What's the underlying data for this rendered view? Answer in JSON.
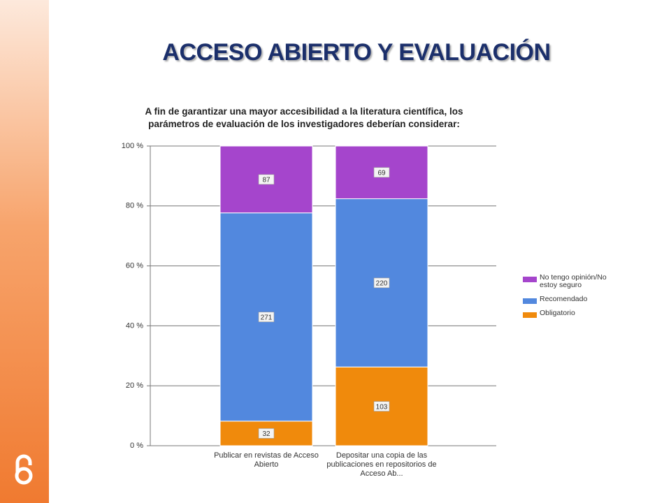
{
  "title": "ACCESO ABIERTO Y EVALUACIÓN",
  "chart_data": {
    "type": "stacked_bar_100",
    "title": "A fin de garantizar una mayor accesibilidad a la literatura científica, los parámetros de evaluación de los investigadores deberían considerar:",
    "categories": [
      "Publicar en revistas de Acceso Abierto",
      "Depositar una copia de las publicaciones en repositorios de Acceso Ab..."
    ],
    "series": [
      {
        "name": "Obligatorio",
        "color": "#f08a0c",
        "values": [
          32,
          103
        ]
      },
      {
        "name": "Recomendado",
        "color": "#5288de",
        "values": [
          271,
          220
        ]
      },
      {
        "name": "No tengo opinión/No estoy seguro",
        "color": "#a545cc",
        "values": [
          87,
          69
        ]
      }
    ],
    "ylim": [
      0,
      100
    ],
    "yticks": [
      {
        "value": 0,
        "label": "0 %"
      },
      {
        "value": 20,
        "label": "20 %"
      },
      {
        "value": 40,
        "label": "40 %"
      },
      {
        "value": 60,
        "label": "60 %"
      },
      {
        "value": 80,
        "label": "80 %"
      },
      {
        "value": 100,
        "label": "100 %"
      }
    ],
    "grid": true,
    "legend": "right"
  }
}
